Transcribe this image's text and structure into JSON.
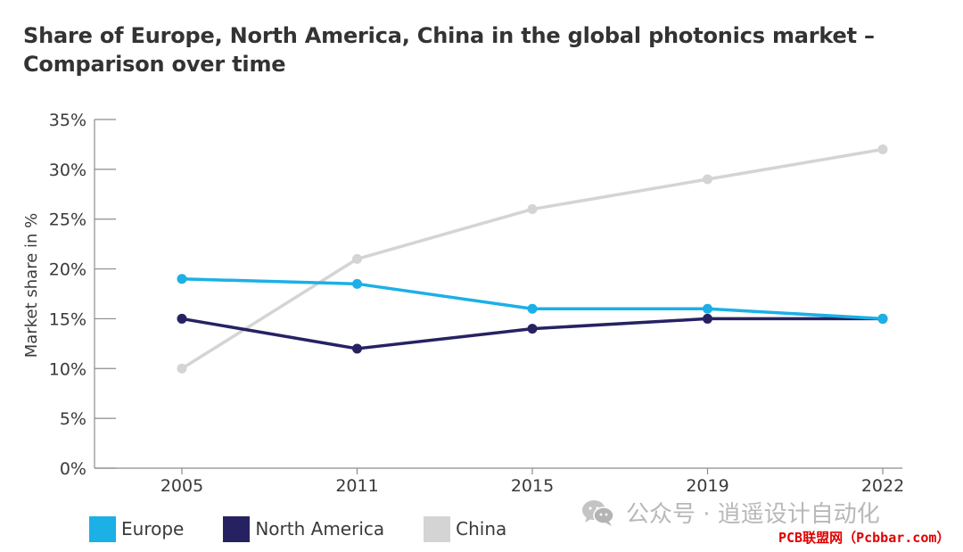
{
  "title_lines": [
    "Share of Europe, North America, China in the global photonics market –",
    "Comparison over time"
  ],
  "chart_data": {
    "type": "line",
    "title": "Share of Europe, North America, China in the global photonics market – Comparison over time",
    "xlabel": "",
    "ylabel": "Market share in %",
    "x": [
      "2005",
      "2011",
      "2015",
      "2019",
      "2022"
    ],
    "ylim": [
      0,
      35
    ],
    "yticks": [
      0,
      5,
      10,
      15,
      20,
      25,
      30,
      35
    ],
    "ytick_labels": [
      "0%",
      "5%",
      "10%",
      "15%",
      "20%",
      "25%",
      "30%",
      "35%"
    ],
    "grid": false,
    "legend_position": "bottom-left",
    "series": [
      {
        "name": "China",
        "color": "#d4d4d4",
        "values": [
          10,
          21,
          26,
          29,
          32
        ]
      },
      {
        "name": "North America",
        "color": "#262262",
        "values": [
          15,
          12,
          14,
          15,
          15
        ]
      },
      {
        "name": "Europe",
        "color": "#1bb0e6",
        "values": [
          19,
          18.5,
          16,
          16,
          15
        ]
      }
    ]
  },
  "legend": [
    {
      "label": "Europe",
      "color": "#1bb0e6"
    },
    {
      "label": "North America",
      "color": "#262262"
    },
    {
      "label": "China",
      "color": "#d4d4d4"
    }
  ],
  "watermark": {
    "text": "公众号 · 逍遥设计自动化",
    "icon": "wechat-icon"
  },
  "footer_credit": "PCB联盟网（Pcbbar.com）"
}
